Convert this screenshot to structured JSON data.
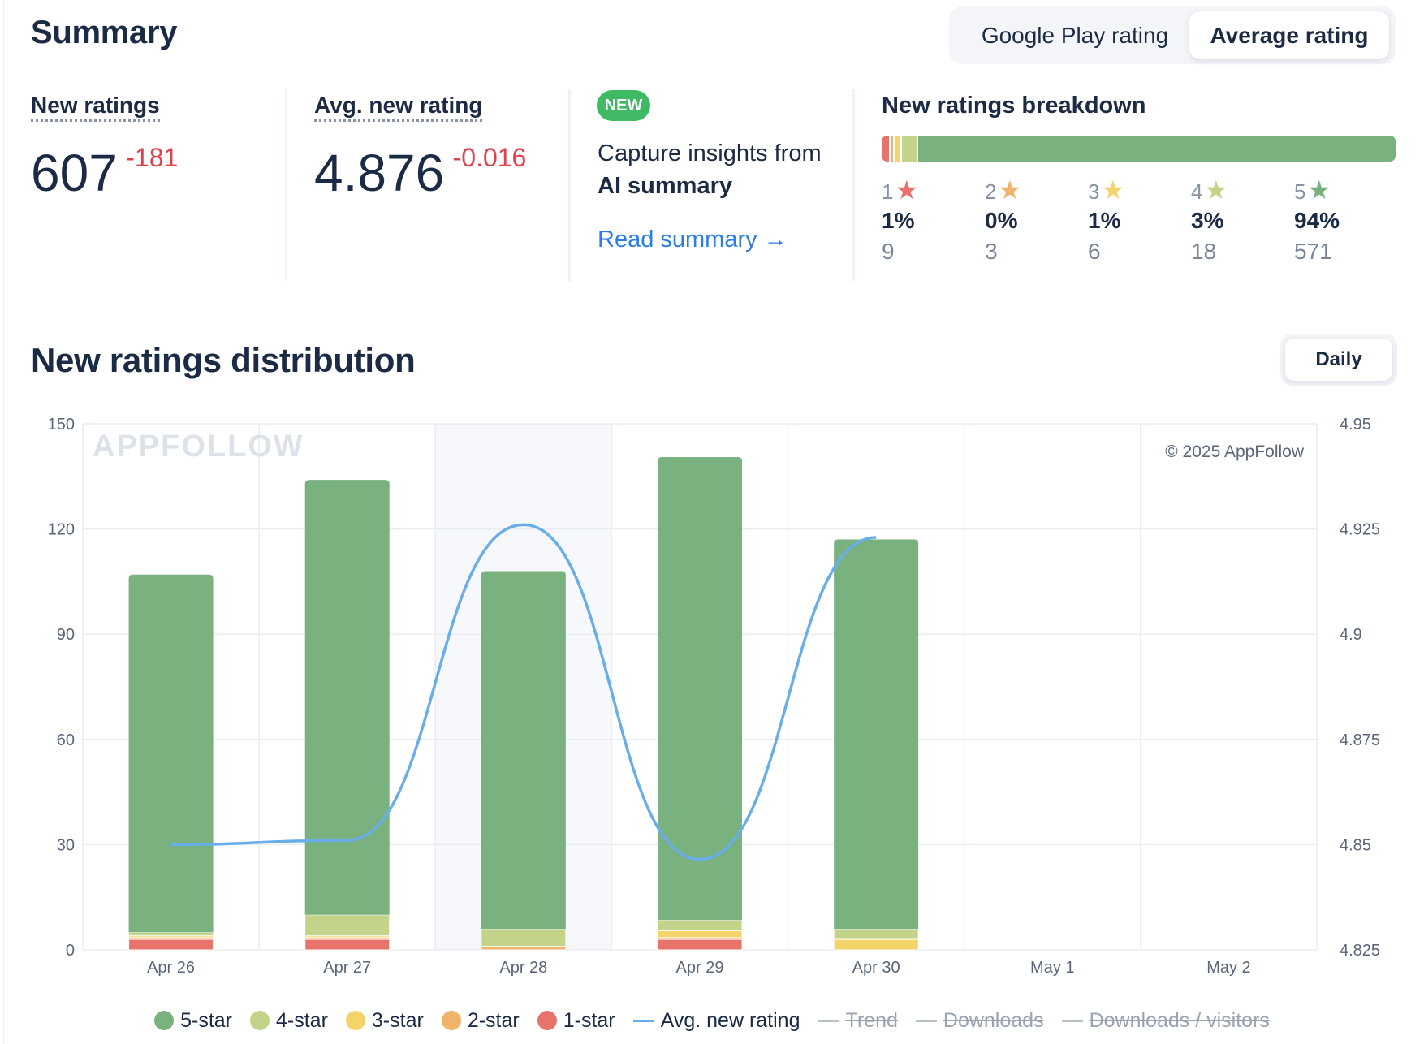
{
  "header": {
    "title": "Summary",
    "toggle": [
      {
        "label": "Google Play rating",
        "active": false
      },
      {
        "label": "Average rating",
        "active": true
      }
    ]
  },
  "metrics": {
    "new_ratings": {
      "label": "New ratings",
      "value": "607",
      "delta": "-181"
    },
    "avg_new_rating": {
      "label": "Avg. new rating",
      "value": "4.876",
      "delta": "-0.016"
    }
  },
  "insights": {
    "badge": "NEW",
    "line1": "Capture insights from",
    "line2": "AI summary",
    "link": "Read summary →"
  },
  "breakdown": {
    "title": "New ratings breakdown",
    "items": [
      {
        "star": "1",
        "pct": "1%",
        "count": "9",
        "color": "#e8736b",
        "share": 1.5
      },
      {
        "star": "2",
        "pct": "0%",
        "count": "3",
        "color": "#f0b36a",
        "share": 0.5
      },
      {
        "star": "3",
        "pct": "1%",
        "count": "6",
        "color": "#f5d36b",
        "share": 1.0
      },
      {
        "star": "4",
        "pct": "3%",
        "count": "18",
        "color": "#c3d38a",
        "share": 3.0
      },
      {
        "star": "5",
        "pct": "94%",
        "count": "571",
        "color": "#79b17f",
        "share": 94.0
      }
    ],
    "star_glyph": "★"
  },
  "distribution": {
    "title": "New ratings distribution",
    "period_button": "Daily",
    "watermark": "APPFOLLOW",
    "copyright": "© 2025 AppFollow"
  },
  "chart_data": {
    "type": "bar",
    "stacked": true,
    "categories": [
      "Apr 26",
      "Apr 27",
      "Apr 28",
      "Apr 29",
      "Apr 30",
      "May 1",
      "May 2"
    ],
    "y_left": {
      "ticks": [
        0,
        30,
        60,
        90,
        120,
        150
      ],
      "ylim": [
        0,
        150
      ]
    },
    "y_right": {
      "ticks": [
        "4.825",
        "4.85",
        "4.875",
        "4.9",
        "4.925",
        "4.95"
      ],
      "ylim": [
        4.825,
        4.95
      ]
    },
    "series": [
      {
        "name": "1-star",
        "color": "#e8736b",
        "values": [
          3,
          3,
          0,
          3,
          0,
          null,
          null
        ]
      },
      {
        "name": "2-star",
        "color": "#f0b36a",
        "values": [
          0.5,
          0.5,
          1,
          0.5,
          0,
          null,
          null
        ]
      },
      {
        "name": "3-star",
        "color": "#f5d36b",
        "values": [
          0.5,
          0.5,
          0,
          2,
          3,
          null,
          null
        ]
      },
      {
        "name": "4-star",
        "color": "#c3d38a",
        "values": [
          1,
          6,
          5,
          3,
          3,
          null,
          null
        ]
      },
      {
        "name": "5-star",
        "color": "#79b17f",
        "values": [
          102,
          124,
          102,
          132,
          111,
          null,
          null
        ]
      }
    ],
    "line": {
      "name": "Avg. new rating",
      "color": "#6aaee9",
      "axis": "right",
      "values": [
        4.85,
        4.851,
        4.926,
        4.8465,
        4.923,
        null,
        null
      ]
    },
    "grid": true
  },
  "legend": [
    {
      "label": "5-star",
      "kind": "dot",
      "color": "#79b17f",
      "enabled": true
    },
    {
      "label": "4-star",
      "kind": "dot",
      "color": "#c3d38a",
      "enabled": true
    },
    {
      "label": "3-star",
      "kind": "dot",
      "color": "#f5d36b",
      "enabled": true
    },
    {
      "label": "2-star",
      "kind": "dot",
      "color": "#f0b36a",
      "enabled": true
    },
    {
      "label": "1-star",
      "kind": "dot",
      "color": "#e8736b",
      "enabled": true
    },
    {
      "label": "Avg. new rating",
      "kind": "line",
      "color": "#6aaee9",
      "enabled": true
    },
    {
      "label": "Trend",
      "kind": "line",
      "color": "#b8c0cc",
      "enabled": false
    },
    {
      "label": "Downloads",
      "kind": "line",
      "color": "#b8c0cc",
      "enabled": false
    },
    {
      "label": "Downloads / visitors",
      "kind": "line",
      "color": "#b8c0cc",
      "enabled": false
    }
  ]
}
